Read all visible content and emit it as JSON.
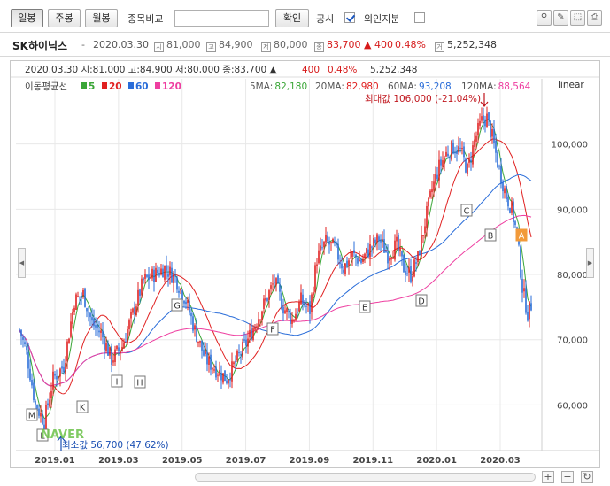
{
  "toolbar": {
    "periods": [
      "일봉",
      "주봉",
      "월봉"
    ],
    "compare_label": "종목비교",
    "confirm_label": "확인",
    "disclosure_label": "공시",
    "foreign_label": "외인지분"
  },
  "info": {
    "name": "SK하이닉스",
    "sep": "-",
    "date": "2020.03.30",
    "open_icon": "시",
    "open": "81,000",
    "high_icon": "고",
    "high": "84,900",
    "low_icon": "저",
    "low": "80,000",
    "close_icon": "종",
    "close": "83,700",
    "change": "▲ 400",
    "change_pct": "0.48%",
    "volume_icon": "거",
    "volume": "5,252,348"
  },
  "chart_data": {
    "type": "candlestick",
    "header": "2020.03.30 시:81,000 고:84,900 저:80,000 종:83,700 ▲",
    "header_change": "400",
    "header_pct": "0.48%",
    "header_volume": "5,252,348",
    "scale_label": "linear",
    "ma_title": "이동평균선",
    "ma_legend": [
      {
        "label": "5",
        "color": "#3aa637"
      },
      {
        "label": "20",
        "color": "#e02020"
      },
      {
        "label": "60",
        "color": "#2a6dd9"
      },
      {
        "label": "120",
        "color": "#ee3ea0"
      }
    ],
    "ma_values": [
      {
        "label": "5MA:",
        "value": "82,180",
        "color": "#3aa637"
      },
      {
        "label": "20MA:",
        "value": "82,980",
        "color": "#e02020"
      },
      {
        "label": "60MA:",
        "value": "93,208",
        "color": "#2a6dd9"
      },
      {
        "label": "120MA:",
        "value": "88,564",
        "color": "#ee3ea0"
      }
    ],
    "max_note": "최대값 106,000 (-21.04%)",
    "min_note": "최소값 56,700 (47.62%)",
    "y_ticks": [
      60000,
      70000,
      80000,
      90000,
      100000
    ],
    "y_tick_labels": [
      "60,000",
      "70,000",
      "80,000",
      "90,000",
      "100,000"
    ],
    "ylim": [
      53000,
      110000
    ],
    "x_ticks": [
      "2019.01",
      "2019.03",
      "2019.05",
      "2019.07",
      "2019.09",
      "2019.11",
      "2020.01",
      "2020.03"
    ],
    "markers": [
      "M",
      "L",
      "K",
      "I",
      "H",
      "G",
      "F",
      "E",
      "D",
      "C",
      "B",
      "A"
    ],
    "watermark": "NAVER",
    "colors": {
      "up": "#e02020",
      "down": "#2a6dd9",
      "grid": "#e8e8e8",
      "marker_A": "#f29a3a"
    }
  },
  "bottom": {
    "zoom_in": "+",
    "zoom_out": "−",
    "reset": "↻"
  }
}
